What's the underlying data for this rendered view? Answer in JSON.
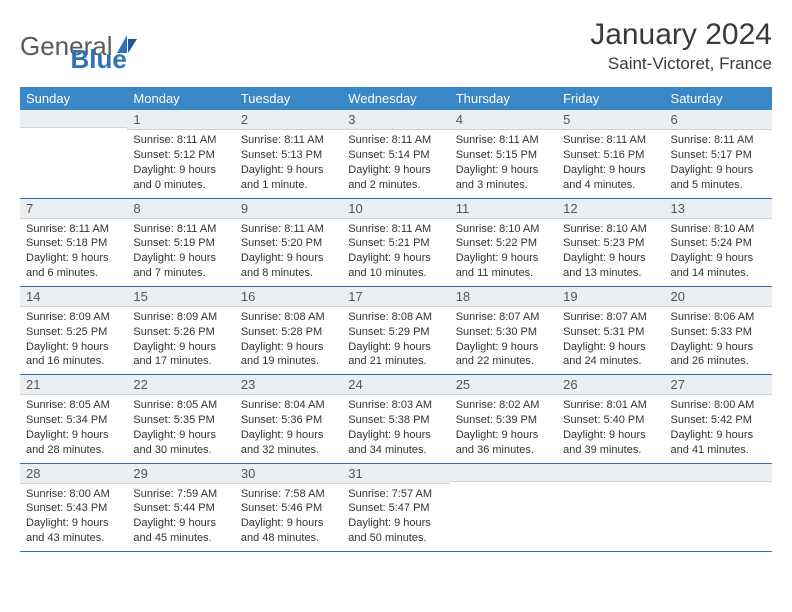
{
  "brand": {
    "part1": "General",
    "part2": "Blue"
  },
  "title": "January 2024",
  "location": "Saint-Victoret, France",
  "colors": {
    "header_bg": "#3a87c8",
    "header_text": "#ffffff",
    "daynum_bg": "#eceff1",
    "border": "#2f72b8",
    "brand_accent": "#2f72b8"
  },
  "weekdays": [
    "Sunday",
    "Monday",
    "Tuesday",
    "Wednesday",
    "Thursday",
    "Friday",
    "Saturday"
  ],
  "weeks": [
    [
      {
        "n": "",
        "sr": "",
        "ss": "",
        "dl": ""
      },
      {
        "n": "1",
        "sr": "Sunrise: 8:11 AM",
        "ss": "Sunset: 5:12 PM",
        "dl": "Daylight: 9 hours and 0 minutes."
      },
      {
        "n": "2",
        "sr": "Sunrise: 8:11 AM",
        "ss": "Sunset: 5:13 PM",
        "dl": "Daylight: 9 hours and 1 minute."
      },
      {
        "n": "3",
        "sr": "Sunrise: 8:11 AM",
        "ss": "Sunset: 5:14 PM",
        "dl": "Daylight: 9 hours and 2 minutes."
      },
      {
        "n": "4",
        "sr": "Sunrise: 8:11 AM",
        "ss": "Sunset: 5:15 PM",
        "dl": "Daylight: 9 hours and 3 minutes."
      },
      {
        "n": "5",
        "sr": "Sunrise: 8:11 AM",
        "ss": "Sunset: 5:16 PM",
        "dl": "Daylight: 9 hours and 4 minutes."
      },
      {
        "n": "6",
        "sr": "Sunrise: 8:11 AM",
        "ss": "Sunset: 5:17 PM",
        "dl": "Daylight: 9 hours and 5 minutes."
      }
    ],
    [
      {
        "n": "7",
        "sr": "Sunrise: 8:11 AM",
        "ss": "Sunset: 5:18 PM",
        "dl": "Daylight: 9 hours and 6 minutes."
      },
      {
        "n": "8",
        "sr": "Sunrise: 8:11 AM",
        "ss": "Sunset: 5:19 PM",
        "dl": "Daylight: 9 hours and 7 minutes."
      },
      {
        "n": "9",
        "sr": "Sunrise: 8:11 AM",
        "ss": "Sunset: 5:20 PM",
        "dl": "Daylight: 9 hours and 8 minutes."
      },
      {
        "n": "10",
        "sr": "Sunrise: 8:11 AM",
        "ss": "Sunset: 5:21 PM",
        "dl": "Daylight: 9 hours and 10 minutes."
      },
      {
        "n": "11",
        "sr": "Sunrise: 8:10 AM",
        "ss": "Sunset: 5:22 PM",
        "dl": "Daylight: 9 hours and 11 minutes."
      },
      {
        "n": "12",
        "sr": "Sunrise: 8:10 AM",
        "ss": "Sunset: 5:23 PM",
        "dl": "Daylight: 9 hours and 13 minutes."
      },
      {
        "n": "13",
        "sr": "Sunrise: 8:10 AM",
        "ss": "Sunset: 5:24 PM",
        "dl": "Daylight: 9 hours and 14 minutes."
      }
    ],
    [
      {
        "n": "14",
        "sr": "Sunrise: 8:09 AM",
        "ss": "Sunset: 5:25 PM",
        "dl": "Daylight: 9 hours and 16 minutes."
      },
      {
        "n": "15",
        "sr": "Sunrise: 8:09 AM",
        "ss": "Sunset: 5:26 PM",
        "dl": "Daylight: 9 hours and 17 minutes."
      },
      {
        "n": "16",
        "sr": "Sunrise: 8:08 AM",
        "ss": "Sunset: 5:28 PM",
        "dl": "Daylight: 9 hours and 19 minutes."
      },
      {
        "n": "17",
        "sr": "Sunrise: 8:08 AM",
        "ss": "Sunset: 5:29 PM",
        "dl": "Daylight: 9 hours and 21 minutes."
      },
      {
        "n": "18",
        "sr": "Sunrise: 8:07 AM",
        "ss": "Sunset: 5:30 PM",
        "dl": "Daylight: 9 hours and 22 minutes."
      },
      {
        "n": "19",
        "sr": "Sunrise: 8:07 AM",
        "ss": "Sunset: 5:31 PM",
        "dl": "Daylight: 9 hours and 24 minutes."
      },
      {
        "n": "20",
        "sr": "Sunrise: 8:06 AM",
        "ss": "Sunset: 5:33 PM",
        "dl": "Daylight: 9 hours and 26 minutes."
      }
    ],
    [
      {
        "n": "21",
        "sr": "Sunrise: 8:05 AM",
        "ss": "Sunset: 5:34 PM",
        "dl": "Daylight: 9 hours and 28 minutes."
      },
      {
        "n": "22",
        "sr": "Sunrise: 8:05 AM",
        "ss": "Sunset: 5:35 PM",
        "dl": "Daylight: 9 hours and 30 minutes."
      },
      {
        "n": "23",
        "sr": "Sunrise: 8:04 AM",
        "ss": "Sunset: 5:36 PM",
        "dl": "Daylight: 9 hours and 32 minutes."
      },
      {
        "n": "24",
        "sr": "Sunrise: 8:03 AM",
        "ss": "Sunset: 5:38 PM",
        "dl": "Daylight: 9 hours and 34 minutes."
      },
      {
        "n": "25",
        "sr": "Sunrise: 8:02 AM",
        "ss": "Sunset: 5:39 PM",
        "dl": "Daylight: 9 hours and 36 minutes."
      },
      {
        "n": "26",
        "sr": "Sunrise: 8:01 AM",
        "ss": "Sunset: 5:40 PM",
        "dl": "Daylight: 9 hours and 39 minutes."
      },
      {
        "n": "27",
        "sr": "Sunrise: 8:00 AM",
        "ss": "Sunset: 5:42 PM",
        "dl": "Daylight: 9 hours and 41 minutes."
      }
    ],
    [
      {
        "n": "28",
        "sr": "Sunrise: 8:00 AM",
        "ss": "Sunset: 5:43 PM",
        "dl": "Daylight: 9 hours and 43 minutes."
      },
      {
        "n": "29",
        "sr": "Sunrise: 7:59 AM",
        "ss": "Sunset: 5:44 PM",
        "dl": "Daylight: 9 hours and 45 minutes."
      },
      {
        "n": "30",
        "sr": "Sunrise: 7:58 AM",
        "ss": "Sunset: 5:46 PM",
        "dl": "Daylight: 9 hours and 48 minutes."
      },
      {
        "n": "31",
        "sr": "Sunrise: 7:57 AM",
        "ss": "Sunset: 5:47 PM",
        "dl": "Daylight: 9 hours and 50 minutes."
      },
      {
        "n": "",
        "sr": "",
        "ss": "",
        "dl": ""
      },
      {
        "n": "",
        "sr": "",
        "ss": "",
        "dl": ""
      },
      {
        "n": "",
        "sr": "",
        "ss": "",
        "dl": ""
      }
    ]
  ]
}
